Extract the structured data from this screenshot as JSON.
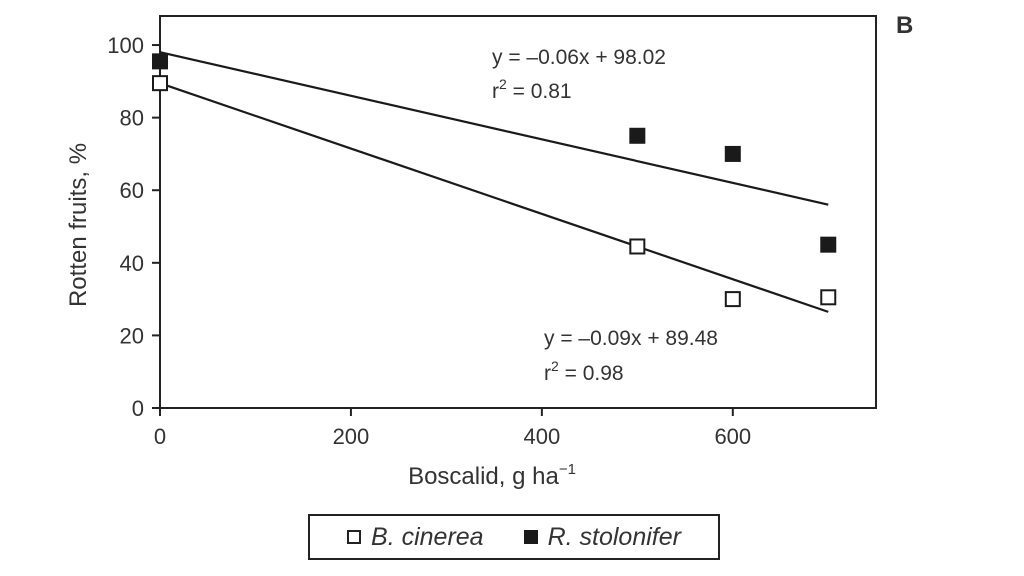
{
  "chart_data": {
    "type": "scatter",
    "panel_label": "B",
    "xlabel": "Boscalid, g ha",
    "xlabel_sup": "−1",
    "ylabel": "Rotten fruits, %",
    "xlim": [
      0,
      750
    ],
    "ylim": [
      0,
      108
    ],
    "x_ticks": [
      0,
      200,
      400,
      600
    ],
    "y_ticks": [
      0,
      20,
      40,
      60,
      80,
      100
    ],
    "grid": false,
    "legend_position": "bottom-center",
    "series": [
      {
        "name": "B. cinerea",
        "marker": "open-square",
        "points": [
          [
            0,
            89.5
          ],
          [
            500,
            44.5
          ],
          [
            600,
            30
          ],
          [
            700,
            30.5
          ]
        ],
        "fit": {
          "slope": -0.09,
          "intercept": 89.48,
          "x_range": [
            0,
            700
          ]
        },
        "equation": "y = –0.09x + 89.48",
        "r2_prefix": "r",
        "r2_sup": "2",
        "r2_value": " = 0.98"
      },
      {
        "name": "R. stolonifer",
        "marker": "filled-square",
        "points": [
          [
            0,
            95.5
          ],
          [
            500,
            75
          ],
          [
            600,
            70
          ],
          [
            700,
            45
          ]
        ],
        "fit": {
          "slope": -0.06,
          "intercept": 98.02,
          "x_range": [
            0,
            700
          ]
        },
        "equation": "y = –0.06x + 98.02",
        "r2_prefix": "r",
        "r2_sup": "2",
        "r2_value": " = 0.81"
      }
    ]
  },
  "colors": {
    "ink": "#1a1a1a",
    "text": "#333333",
    "background": "#ffffff"
  }
}
